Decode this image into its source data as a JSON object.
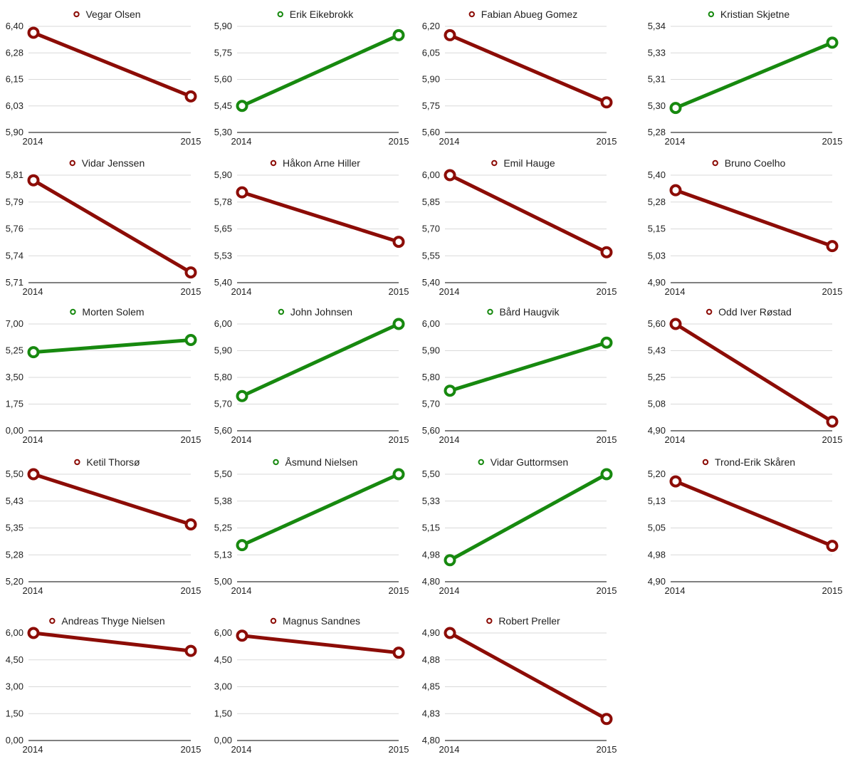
{
  "colors": {
    "up": "#17890f",
    "down": "#8c0c06",
    "grid": "#d9d9d9",
    "axis": "#000000"
  },
  "chart_data": [
    {
      "type": "line",
      "title": "Vegar Olsen",
      "categories": [
        "2014",
        "2015"
      ],
      "values": [
        6.37,
        6.07
      ],
      "color": "down",
      "yticks": [
        "5,90",
        "6,03",
        "6,15",
        "6,28",
        "6,40"
      ],
      "ylim": [
        5.9,
        6.4
      ]
    },
    {
      "type": "line",
      "title": "Erik Eikebrokk",
      "categories": [
        "2014",
        "2015"
      ],
      "values": [
        5.45,
        5.85
      ],
      "color": "up",
      "yticks": [
        "5,30",
        "5,45",
        "5,60",
        "5,75",
        "5,90"
      ],
      "ylim": [
        5.3,
        5.9
      ]
    },
    {
      "type": "line",
      "title": "Fabian Abueg Gomez",
      "categories": [
        "2014",
        "2015"
      ],
      "values": [
        6.15,
        5.77
      ],
      "color": "down",
      "yticks": [
        "5,60",
        "5,75",
        "5,90",
        "6,05",
        "6,20"
      ],
      "ylim": [
        5.6,
        6.2
      ]
    },
    {
      "type": "line",
      "title": "Kristian Skjetne",
      "categories": [
        "2014",
        "2015"
      ],
      "values": [
        5.295,
        5.335
      ],
      "color": "up",
      "yticks": [
        "5,28",
        "5,30",
        "5,31",
        "5,33",
        "5,34"
      ],
      "ylim": [
        5.28,
        5.345
      ]
    },
    {
      "type": "line",
      "title": "Vidar Jenssen",
      "categories": [
        "2014",
        "2015"
      ],
      "values": [
        5.81,
        5.72
      ],
      "color": "down",
      "yticks": [
        "5,71",
        "5,74",
        "5,76",
        "5,79",
        "5,81"
      ],
      "ylim": [
        5.71,
        5.815
      ]
    },
    {
      "type": "line",
      "title": "Håkon Arne Hiller",
      "categories": [
        "2014",
        "2015"
      ],
      "values": [
        5.82,
        5.59
      ],
      "color": "down",
      "yticks": [
        "5,40",
        "5,53",
        "5,65",
        "5,78",
        "5,90"
      ],
      "ylim": [
        5.4,
        5.9
      ]
    },
    {
      "type": "line",
      "title": "Emil Hauge",
      "categories": [
        "2014",
        "2015"
      ],
      "values": [
        6.0,
        5.57
      ],
      "color": "down",
      "yticks": [
        "5,40",
        "5,55",
        "5,70",
        "5,85",
        "6,00"
      ],
      "ylim": [
        5.4,
        6.0
      ]
    },
    {
      "type": "line",
      "title": "Bruno Coelho",
      "categories": [
        "2014",
        "2015"
      ],
      "values": [
        5.33,
        5.07
      ],
      "color": "down",
      "yticks": [
        "4,90",
        "5,03",
        "5,15",
        "5,28",
        "5,40"
      ],
      "ylim": [
        4.9,
        5.4
      ]
    },
    {
      "type": "line",
      "title": "Morten Solem",
      "categories": [
        "2014",
        "2015"
      ],
      "values": [
        5.15,
        5.95
      ],
      "color": "up",
      "yticks": [
        "0,00",
        "1,75",
        "3,50",
        "5,25",
        "7,00"
      ],
      "ylim": [
        0,
        7.0
      ]
    },
    {
      "type": "line",
      "title": "John Johnsen",
      "categories": [
        "2014",
        "2015"
      ],
      "values": [
        5.73,
        6.0
      ],
      "color": "up",
      "yticks": [
        "5,60",
        "5,70",
        "5,80",
        "5,90",
        "6,00"
      ],
      "ylim": [
        5.6,
        6.0
      ]
    },
    {
      "type": "line",
      "title": "Bård Haugvik",
      "categories": [
        "2014",
        "2015"
      ],
      "values": [
        5.75,
        5.93
      ],
      "color": "up",
      "yticks": [
        "5,60",
        "5,70",
        "5,80",
        "5,90",
        "6,00"
      ],
      "ylim": [
        5.6,
        6.0
      ]
    },
    {
      "type": "line",
      "title": "Odd Iver Røstad",
      "categories": [
        "2014",
        "2015"
      ],
      "values": [
        5.6,
        4.96
      ],
      "color": "down",
      "yticks": [
        "4,90",
        "5,08",
        "5,25",
        "5,43",
        "5,60"
      ],
      "ylim": [
        4.9,
        5.6
      ]
    },
    {
      "type": "line",
      "title": "Ketil Thorsø",
      "categories": [
        "2014",
        "2015"
      ],
      "values": [
        5.5,
        5.36
      ],
      "color": "down",
      "yticks": [
        "5,20",
        "5,28",
        "5,35",
        "5,43",
        "5,50"
      ],
      "ylim": [
        5.2,
        5.5
      ]
    },
    {
      "type": "line",
      "title": "Åsmund Nielsen",
      "categories": [
        "2014",
        "2015"
      ],
      "values": [
        5.17,
        5.5
      ],
      "color": "up",
      "yticks": [
        "5,00",
        "5,13",
        "5,25",
        "5,38",
        "5,50"
      ],
      "ylim": [
        5.0,
        5.5
      ]
    },
    {
      "type": "line",
      "title": "Vidar Guttormsen",
      "categories": [
        "2014",
        "2015"
      ],
      "values": [
        4.94,
        5.5
      ],
      "color": "up",
      "yticks": [
        "4,80",
        "4,98",
        "5,15",
        "5,33",
        "5,50"
      ],
      "ylim": [
        4.8,
        5.5
      ]
    },
    {
      "type": "line",
      "title": "Trond-Erik Skåren",
      "categories": [
        "2014",
        "2015"
      ],
      "values": [
        5.18,
        5.0
      ],
      "color": "down",
      "yticks": [
        "4,90",
        "4,98",
        "5,05",
        "5,13",
        "5,20"
      ],
      "ylim": [
        4.9,
        5.2
      ]
    },
    {
      "type": "line",
      "title": "Andreas Thyge Nielsen",
      "categories": [
        "2014",
        "2015"
      ],
      "values": [
        6.0,
        5.0
      ],
      "color": "down",
      "yticks": [
        "0,00",
        "1,50",
        "3,00",
        "4,50",
        "6,00"
      ],
      "ylim": [
        0,
        6.0
      ]
    },
    {
      "type": "line",
      "title": "Magnus Sandnes",
      "categories": [
        "2014",
        "2015"
      ],
      "values": [
        5.85,
        4.9
      ],
      "color": "down",
      "yticks": [
        "0,00",
        "1,50",
        "3,00",
        "4,50",
        "6,00"
      ],
      "ylim": [
        0,
        6.0
      ]
    },
    {
      "type": "line",
      "title": "Robert Preller",
      "categories": [
        "2014",
        "2015"
      ],
      "values": [
        4.9,
        4.82
      ],
      "color": "down",
      "yticks": [
        "4,80",
        "4,83",
        "4,85",
        "4,88",
        "4,90"
      ],
      "ylim": [
        4.8,
        4.9
      ]
    }
  ]
}
